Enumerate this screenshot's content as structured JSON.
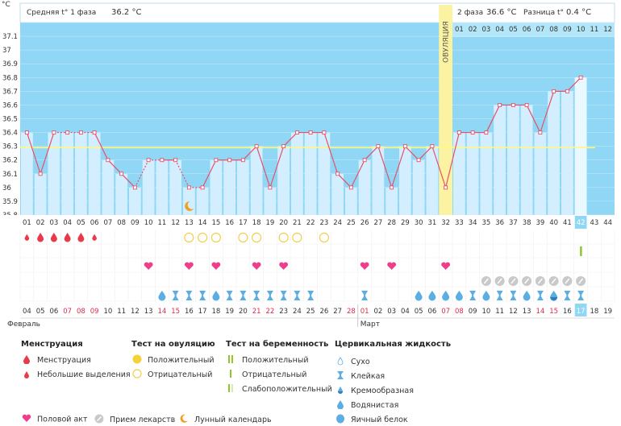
{
  "header": {
    "unit": "°C",
    "phase1_label": "Средняя t° 1 фаза",
    "phase1_value": "36.2 °C",
    "phase2_label": "2 фаза",
    "phase2_value": "36.6 °C",
    "diff_label": "Разница t°",
    "diff_value": "0.4 °C",
    "ovulation_label": "ОВУЛЯЦИЯ"
  },
  "colors": {
    "bar": "#d3efff",
    "bg_phase1": "#8fd7f4",
    "bg_phase2": "#8fd7f4",
    "ovulation": "#fbf3a2",
    "line": "#e8506a",
    "coverline": "#fffb7a",
    "menstruation": "#e83a4b",
    "sex": "#ee3f8c",
    "positive_ovul": "#f4d23a",
    "neg_ovul": "#f1cf4c",
    "preg_test": "#8fc62a",
    "medicine": "#c9c9c9",
    "cervical": "#5aaee3",
    "moon": "#f0a020"
  },
  "chart_data": {
    "type": "line",
    "ylabel": "°C",
    "ylim": [
      35.8,
      37.2
    ],
    "y_ticks": [
      "35.8",
      "35.9",
      "36",
      "36.1",
      "36.2",
      "36.3",
      "36.4",
      "36.5",
      "36.6",
      "36.7",
      "36.8",
      "36.9",
      "37",
      "37.1"
    ],
    "coverline": 36.29,
    "ovulation_day": 32,
    "days": [
      "01",
      "02",
      "03",
      "04",
      "05",
      "06",
      "07",
      "08",
      "09",
      "10",
      "11",
      "12",
      "13",
      "14",
      "15",
      "16",
      "17",
      "18",
      "19",
      "20",
      "21",
      "22",
      "23",
      "24",
      "25",
      "26",
      "27",
      "28",
      "29",
      "30",
      "31",
      "32",
      "33",
      "34",
      "35",
      "36",
      "37",
      "38",
      "39",
      "40",
      "41",
      "42",
      "43",
      "44"
    ],
    "phase2_days": [
      "01",
      "02",
      "03",
      "04",
      "05",
      "06",
      "07",
      "08",
      "09",
      "10",
      "11",
      "12"
    ],
    "temperatures": [
      36.4,
      36.1,
      36.4,
      36.4,
      36.4,
      36.4,
      36.2,
      36.1,
      36.0,
      36.2,
      36.2,
      36.2,
      36.0,
      36.0,
      36.2,
      36.2,
      36.2,
      36.3,
      36.0,
      36.3,
      36.4,
      36.4,
      36.4,
      36.1,
      36.0,
      36.2,
      36.3,
      36.0,
      36.3,
      36.2,
      36.3,
      36.0,
      36.4,
      36.4,
      36.4,
      36.6,
      36.6,
      36.6,
      36.4,
      36.7,
      36.7,
      36.8,
      null,
      null
    ],
    "excluded_days": [
      4,
      5,
      10,
      13
    ],
    "highlight_day": 42,
    "dates": [
      "04",
      "05",
      "06",
      "07",
      "08",
      "09",
      "10",
      "11",
      "12",
      "13",
      "14",
      "15",
      "16",
      "17",
      "18",
      "19",
      "20",
      "21",
      "22",
      "23",
      "24",
      "25",
      "26",
      "27",
      "28",
      "01",
      "02",
      "03",
      "04",
      "05",
      "06",
      "07",
      "08",
      "09",
      "10",
      "11",
      "12",
      "13",
      "14",
      "15",
      "16",
      "17",
      "18",
      "19"
    ],
    "date_red_indices": [
      3,
      4,
      5,
      10,
      11,
      17,
      18,
      24,
      25,
      31,
      32,
      38,
      39
    ],
    "month_left": "Февраль",
    "month_right": "Март",
    "menstruation": [
      0,
      1,
      2,
      3,
      4,
      5
    ],
    "menstruation_small": [
      0,
      5
    ],
    "ovulation_test_negative": [
      12,
      13,
      14,
      16,
      17,
      19,
      20,
      22
    ],
    "pregnancy_test_positive": [
      41
    ],
    "sex_days": [
      9,
      12,
      14,
      17,
      19,
      25,
      27,
      31
    ],
    "medicine_days": [
      34,
      35,
      36,
      37,
      38,
      39,
      40,
      41
    ],
    "moon_day": 12,
    "cervical_sticky": [
      11,
      12,
      13,
      15,
      16,
      17,
      18,
      19,
      20,
      21,
      25,
      33,
      35,
      36,
      38,
      40,
      41
    ],
    "cervical_watery": [
      10,
      14,
      29,
      30,
      31,
      32,
      34,
      37
    ],
    "cervical_creamy": [
      39
    ]
  },
  "legend": {
    "menstruation_head": "Менструация",
    "menstruation": "Менструация",
    "spotting": "Небольшие выделения",
    "ovul_head": "Тест на овуляцию",
    "ovul_pos": "Положительный",
    "ovul_neg": "Отрицательный",
    "preg_head": "Тест на беременность",
    "preg_pos": "Положительный",
    "preg_neg": "Отрицательный",
    "preg_weak": "Слабоположительный",
    "cerv_head": "Цервикальная жидкость",
    "cerv_dry": "Сухо",
    "cerv_sticky": "Клейкая",
    "cerv_creamy": "Кремообразная",
    "cerv_watery": "Водянистая",
    "cerv_eggwhite": "Яичный белок",
    "sex": "Половой акт",
    "medicine": "Прием лекарств",
    "moon": "Лунный календарь"
  }
}
